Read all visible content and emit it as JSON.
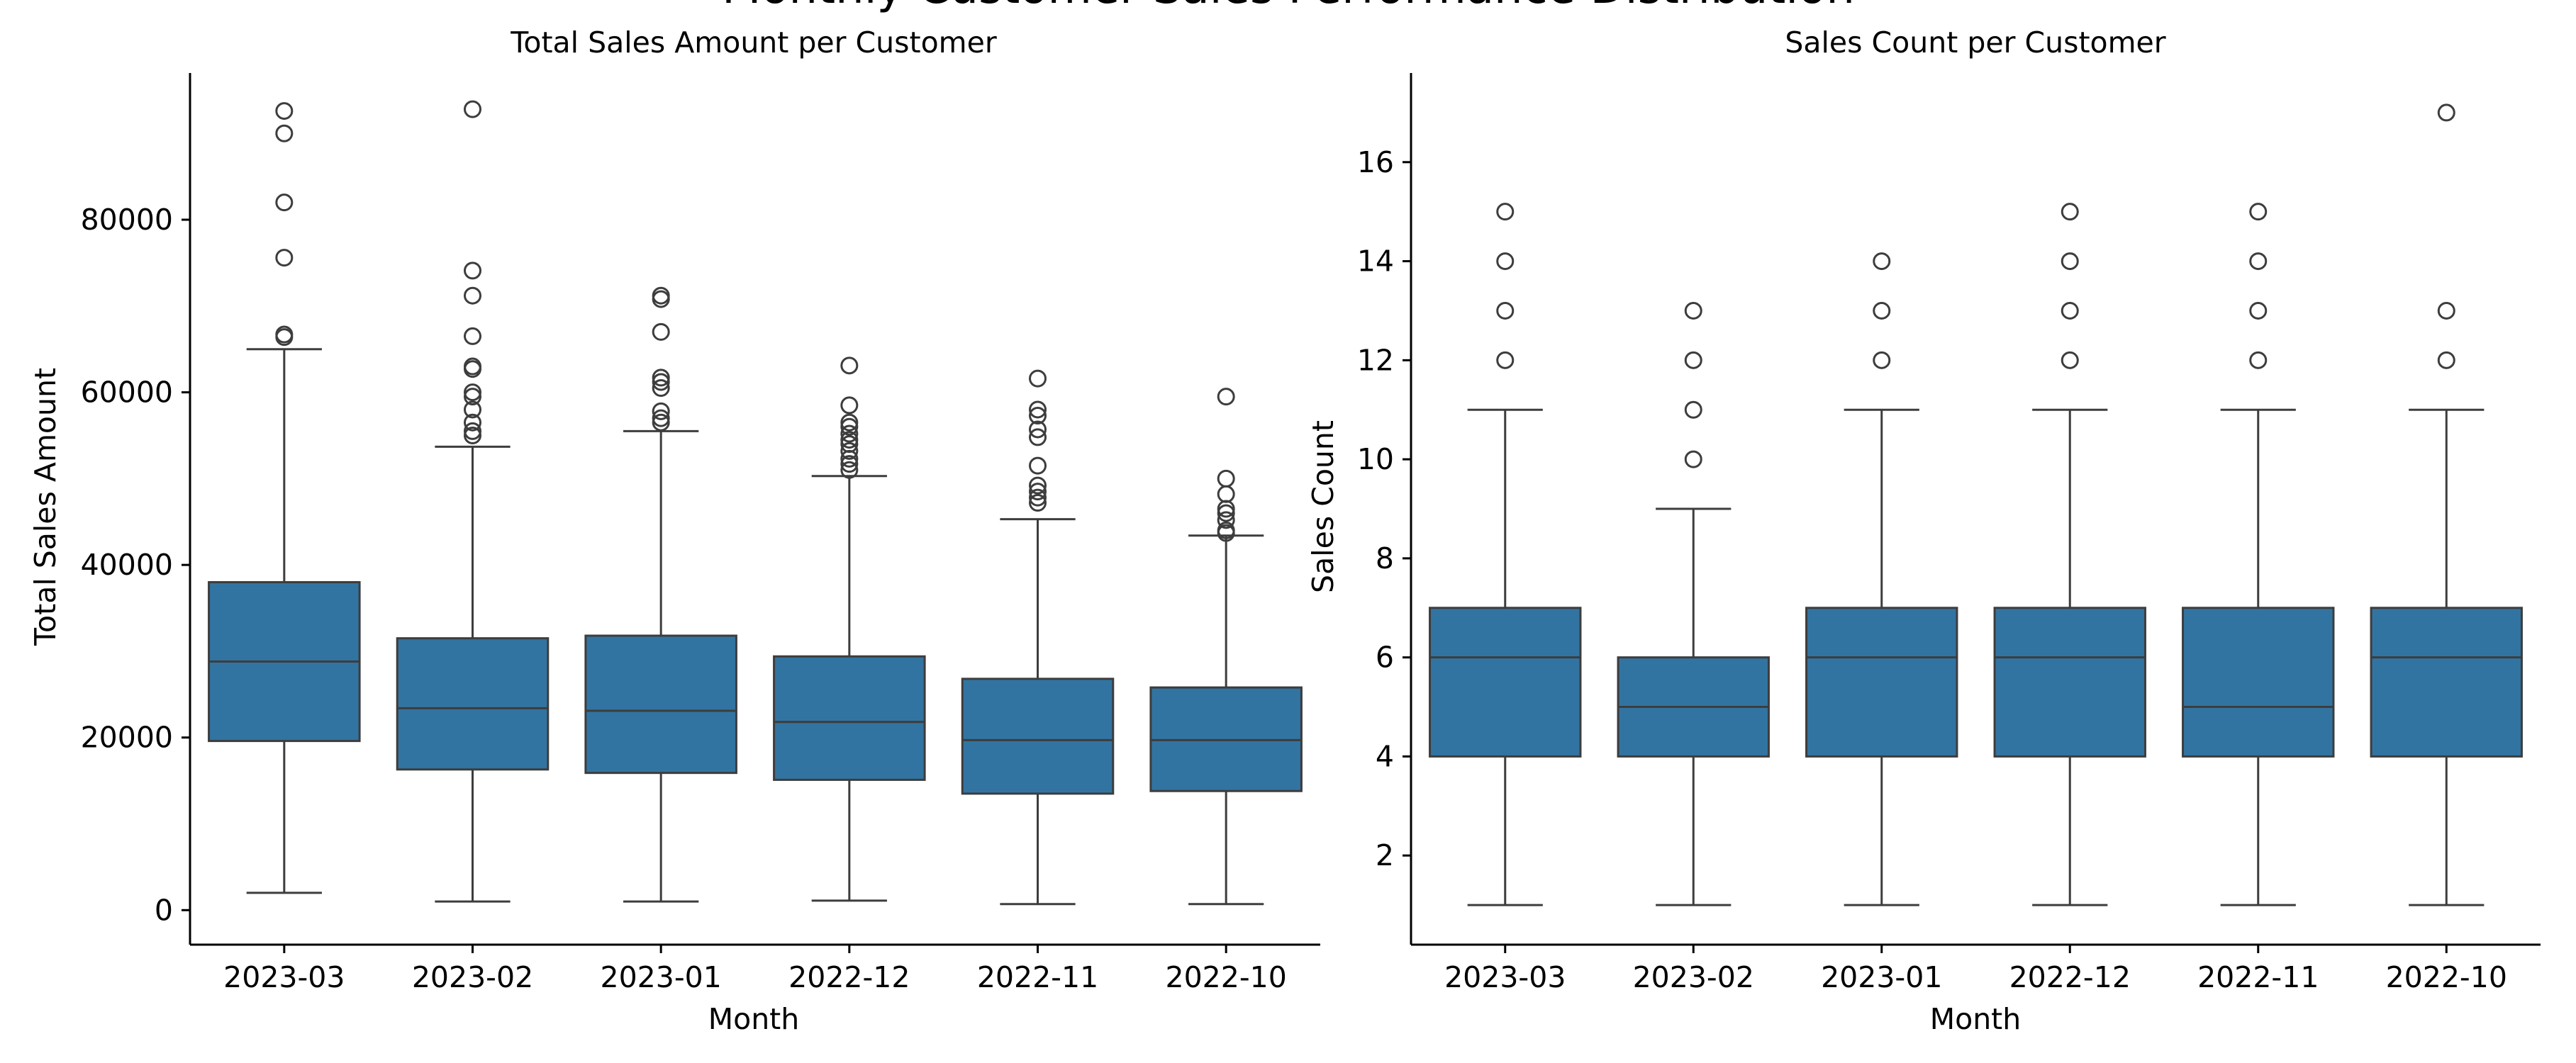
{
  "figure": {
    "suptitle": "Monthly Customer Sales Performance Distribution"
  },
  "chart_data": [
    {
      "type": "box",
      "title": "Total Sales Amount per Customer",
      "xlabel": "Month",
      "ylabel": "Total Sales Amount",
      "ylim": [
        -4000,
        97000
      ],
      "yticks": [
        0,
        20000,
        40000,
        60000,
        80000
      ],
      "categories": [
        "2023-03",
        "2023-02",
        "2023-01",
        "2022-12",
        "2022-11",
        "2022-10"
      ],
      "color": "#3274a1",
      "boxes": [
        {
          "min": 2000,
          "q1": 19600,
          "median": 28800,
          "q3": 38000,
          "max": 65000,
          "outliers": [
            66400,
            66700,
            75600,
            82000,
            90000,
            92600
          ]
        },
        {
          "min": 1000,
          "q1": 16300,
          "median": 23400,
          "q3": 31500,
          "max": 53700,
          "outliers": [
            55000,
            55500,
            56500,
            58000,
            59500,
            60000,
            62700,
            63000,
            66500,
            71200,
            74100,
            92800
          ]
        },
        {
          "min": 1000,
          "q1": 15900,
          "median": 23100,
          "q3": 31800,
          "max": 55500,
          "outliers": [
            56500,
            57000,
            57800,
            60500,
            61200,
            61700,
            67000,
            70800,
            71200
          ]
        },
        {
          "min": 1100,
          "q1": 15100,
          "median": 21800,
          "q3": 29400,
          "max": 50300,
          "outliers": [
            51000,
            51700,
            52300,
            53200,
            54000,
            54500,
            55200,
            56000,
            56500,
            58500,
            63100
          ]
        },
        {
          "min": 700,
          "q1": 13500,
          "median": 19700,
          "q3": 26800,
          "max": 45300,
          "outliers": [
            47200,
            47800,
            48500,
            49200,
            51500,
            54800,
            55700,
            57300,
            58000,
            61600
          ]
        },
        {
          "min": 700,
          "q1": 13800,
          "median": 19700,
          "q3": 25800,
          "max": 43400,
          "outliers": [
            43700,
            44000,
            45200,
            46000,
            46500,
            48200,
            50000,
            59500
          ]
        }
      ]
    },
    {
      "type": "box",
      "title": "Sales Count per Customer",
      "xlabel": "Month",
      "ylabel": "Sales Count",
      "ylim": [
        0.2,
        17.8
      ],
      "yticks": [
        2,
        4,
        6,
        8,
        10,
        12,
        14,
        16
      ],
      "categories": [
        "2023-03",
        "2023-02",
        "2023-01",
        "2022-12",
        "2022-11",
        "2022-10"
      ],
      "color": "#3274a1",
      "boxes": [
        {
          "min": 1,
          "q1": 4,
          "median": 6,
          "q3": 7,
          "max": 11,
          "outliers": [
            12,
            13,
            14,
            15
          ]
        },
        {
          "min": 1,
          "q1": 4,
          "median": 5,
          "q3": 6,
          "max": 9,
          "outliers": [
            10,
            11,
            12,
            13
          ]
        },
        {
          "min": 1,
          "q1": 4,
          "median": 6,
          "q3": 7,
          "max": 11,
          "outliers": [
            12,
            13,
            14
          ]
        },
        {
          "min": 1,
          "q1": 4,
          "median": 6,
          "q3": 7,
          "max": 11,
          "outliers": [
            12,
            13,
            14,
            15
          ]
        },
        {
          "min": 1,
          "q1": 4,
          "median": 5,
          "q3": 7,
          "max": 11,
          "outliers": [
            12,
            13,
            14,
            15
          ]
        },
        {
          "min": 1,
          "q1": 4,
          "median": 6,
          "q3": 7,
          "max": 11,
          "outliers": [
            12,
            13,
            17
          ]
        }
      ]
    }
  ]
}
